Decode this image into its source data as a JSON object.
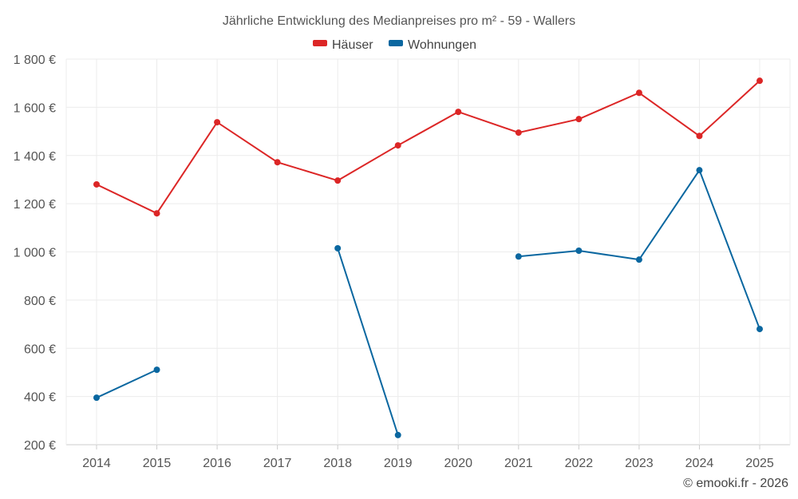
{
  "chart_data": {
    "type": "line",
    "title": "Jährliche Entwicklung des Medianpreises pro m² - 59 - Wallers",
    "xlabel": "",
    "ylabel": "",
    "categories": [
      "2014",
      "2015",
      "2016",
      "2017",
      "2018",
      "2019",
      "2020",
      "2021",
      "2022",
      "2023",
      "2024",
      "2025"
    ],
    "ylim": [
      200,
      1800
    ],
    "yticks": [
      200,
      400,
      600,
      800,
      1000,
      1200,
      1400,
      1600,
      1800
    ],
    "ytick_labels": [
      "200 €",
      "400 €",
      "600 €",
      "800 €",
      "1 000 €",
      "1 200 €",
      "1 400 €",
      "1 600 €",
      "1 800 €"
    ],
    "grid": true,
    "legend_position": "top-center",
    "series": [
      {
        "name": "Häuser",
        "color": "#dc2626",
        "values": [
          1280,
          1160,
          1538,
          1372,
          1296,
          1442,
          1581,
          1495,
          1551,
          1660,
          1481,
          1710
        ]
      },
      {
        "name": "Wohnungen",
        "color": "#0a67a0",
        "values": [
          395,
          511,
          null,
          null,
          1015,
          240,
          null,
          981,
          1005,
          968,
          1339,
          680
        ]
      }
    ],
    "credit": "© emooki.fr - 2026"
  }
}
